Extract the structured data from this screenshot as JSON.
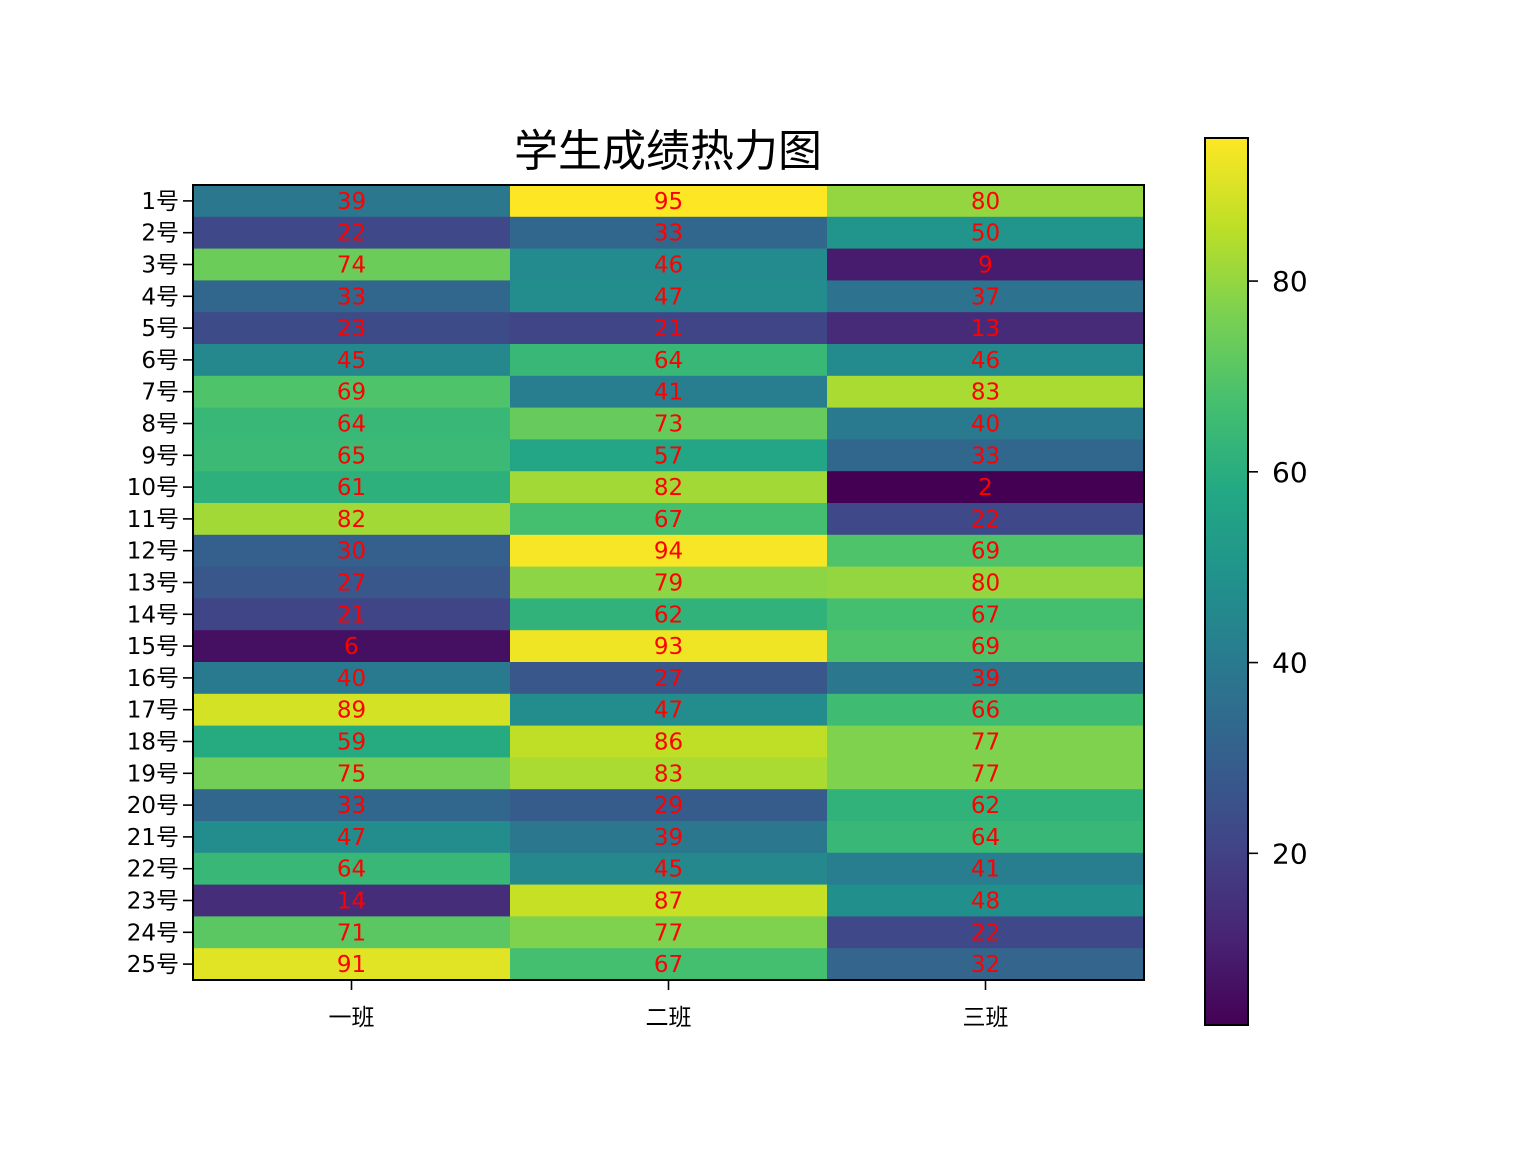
{
  "chart_data": {
    "type": "heatmap",
    "title": "学生成绩热力图",
    "x_categories": [
      "一班",
      "二班",
      "三班"
    ],
    "y_categories": [
      "1号",
      "2号",
      "3号",
      "4号",
      "5号",
      "6号",
      "7号",
      "8号",
      "9号",
      "10号",
      "11号",
      "12号",
      "13号",
      "14号",
      "15号",
      "16号",
      "17号",
      "18号",
      "19号",
      "20号",
      "21号",
      "22号",
      "23号",
      "24号",
      "25号"
    ],
    "values": [
      [
        39,
        95,
        80
      ],
      [
        22,
        33,
        50
      ],
      [
        74,
        46,
        9
      ],
      [
        33,
        47,
        37
      ],
      [
        23,
        21,
        13
      ],
      [
        45,
        64,
        46
      ],
      [
        69,
        41,
        83
      ],
      [
        64,
        73,
        40
      ],
      [
        65,
        57,
        33
      ],
      [
        61,
        82,
        2
      ],
      [
        82,
        67,
        22
      ],
      [
        30,
        94,
        69
      ],
      [
        27,
        79,
        80
      ],
      [
        21,
        62,
        67
      ],
      [
        6,
        93,
        69
      ],
      [
        40,
        27,
        39
      ],
      [
        89,
        47,
        66
      ],
      [
        59,
        86,
        77
      ],
      [
        75,
        83,
        77
      ],
      [
        33,
        29,
        62
      ],
      [
        47,
        39,
        64
      ],
      [
        64,
        45,
        41
      ],
      [
        14,
        87,
        48
      ],
      [
        71,
        77,
        22
      ],
      [
        91,
        67,
        32
      ]
    ],
    "value_range": [
      2,
      95
    ],
    "colormap": "viridis",
    "annotation_color": "#ff0000",
    "colorbar": {
      "ticks": [
        20,
        40,
        60,
        80
      ],
      "tick_labels": [
        "20",
        "40",
        "60",
        "80"
      ]
    },
    "grid": false,
    "legend": "colorbar-right"
  }
}
